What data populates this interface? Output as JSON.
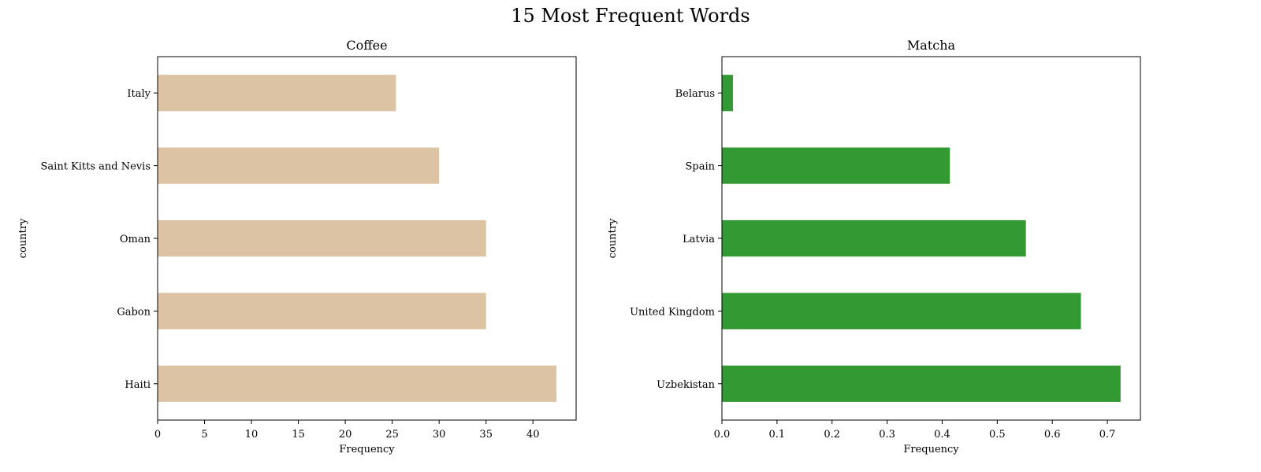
{
  "figure": {
    "title": "15 Most Frequent Words"
  },
  "chart_data": [
    {
      "type": "bar",
      "orientation": "horizontal",
      "title": "Coffee",
      "xlabel": "Frequency",
      "ylabel": "country",
      "categories": [
        "Italy",
        "Saint Kitts and Nevis",
        "Oman",
        "Gabon",
        "Haiti"
      ],
      "values": [
        25.4,
        30.0,
        35.0,
        35.0,
        42.5
      ],
      "xlim": [
        0,
        44.6
      ],
      "xticks": [
        0,
        5,
        10,
        15,
        20,
        25,
        30,
        35,
        40
      ],
      "xtick_labels": [
        "0",
        "5",
        "10",
        "15",
        "20",
        "25",
        "30",
        "35",
        "40"
      ],
      "bar_color": "#dcc3a3",
      "grid": false
    },
    {
      "type": "bar",
      "orientation": "horizontal",
      "title": "Matcha",
      "xlabel": "Frequency",
      "ylabel": "country",
      "categories": [
        "Belarus",
        "Spain",
        "Latvia",
        "United Kingdom",
        "Uzbekistan"
      ],
      "values": [
        0.02,
        0.414,
        0.552,
        0.652,
        0.724
      ],
      "xlim": [
        0,
        0.76
      ],
      "xticks": [
        0.0,
        0.1,
        0.2,
        0.3,
        0.4,
        0.5,
        0.6,
        0.7
      ],
      "xtick_labels": [
        "0.0",
        "0.1",
        "0.2",
        "0.3",
        "0.4",
        "0.5",
        "0.6",
        "0.7"
      ],
      "bar_color": "#339933",
      "grid": false
    }
  ]
}
